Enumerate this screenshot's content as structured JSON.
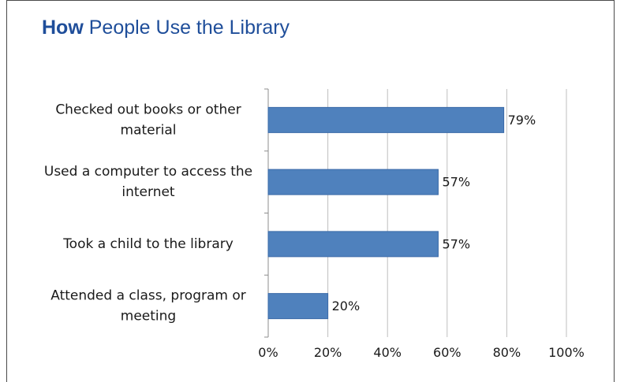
{
  "chart_data": {
    "type": "bar",
    "orientation": "horizontal",
    "title_bold": "How",
    "title_rest": "People Use the Library",
    "categories": [
      [
        "Checked out books or other",
        "material"
      ],
      [
        "Used a computer to access the",
        "internet"
      ],
      [
        "Took a child to the library"
      ],
      [
        "Attended a class, program or",
        "meeting"
      ]
    ],
    "values": [
      79,
      57,
      57,
      20
    ],
    "data_labels": [
      "79%",
      "57%",
      "57%",
      "20%"
    ],
    "xlim": [
      0,
      100
    ],
    "xticks": [
      0,
      20,
      40,
      60,
      80,
      100
    ],
    "xtick_labels": [
      "0%",
      "20%",
      "40%",
      "60%",
      "80%",
      "100%"
    ],
    "grid": "vertical",
    "legend": "none",
    "bar_color": "#4f81bd",
    "bar_border_color": "#3a6aa8",
    "grid_color": "#bfbfbf",
    "title_color": "#1f4e9a"
  }
}
